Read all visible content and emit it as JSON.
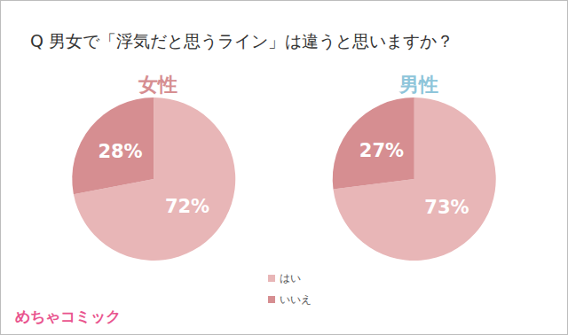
{
  "title": "Q 男女で「浮気だと思うライン」は違うと思いますか？",
  "logo": "めちゃコミック",
  "chart_data": [
    {
      "type": "pie",
      "title": "女性",
      "categories": [
        "はい",
        "いいえ"
      ],
      "values": [
        72,
        28
      ],
      "value_labels": [
        "72%",
        "28%"
      ],
      "colors": [
        "#e8b6b7",
        "#d68e91"
      ],
      "data_labels": true,
      "legend": "bottom"
    },
    {
      "type": "pie",
      "title": "男性",
      "categories": [
        "はい",
        "いいえ"
      ],
      "values": [
        73,
        27
      ],
      "value_labels": [
        "73%",
        "27%"
      ],
      "colors": [
        "#e8b6b7",
        "#d68e91"
      ],
      "data_labels": true,
      "legend": "bottom"
    }
  ]
}
